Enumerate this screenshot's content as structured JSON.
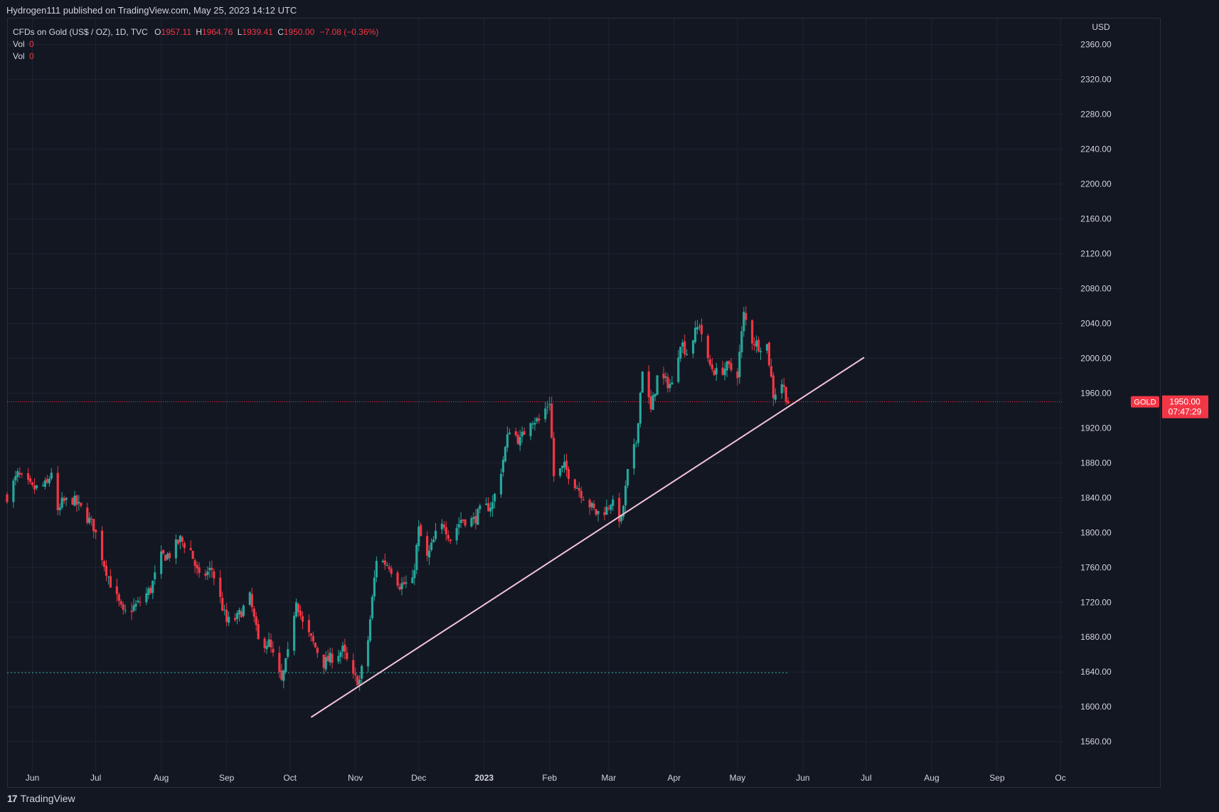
{
  "header": {
    "publish_line": "Hydrogen111 published on TradingView.com, May 25, 2023 14:12 UTC"
  },
  "legend": {
    "symbol": "CFDs on Gold (US$ / OZ), 1D, TVC",
    "o_label": "O",
    "o_value": "1957.11",
    "h_label": "H",
    "h_value": "1964.76",
    "l_label": "L",
    "l_value": "1939.41",
    "c_label": "C",
    "c_value": "1950.00",
    "change": "−7.08 (−0.36%)",
    "vol_rows": [
      {
        "label": "Vol",
        "value": "0"
      },
      {
        "label": "Vol",
        "value": "0"
      }
    ]
  },
  "footer": {
    "brand": "TradingView",
    "logo_glyph": "17"
  },
  "colors": {
    "up": "#26a69a",
    "down": "#f23645",
    "background": "#131722",
    "grid": "#1f2431",
    "trendline": "#f4c4d8",
    "price_line": "#f23645"
  },
  "chart_data": {
    "type": "candlestick",
    "currency_label": "USD",
    "ylim": [
      1525,
      2390
    ],
    "y_ticks": [
      "2360.00",
      "2320.00",
      "2280.00",
      "2240.00",
      "2200.00",
      "2160.00",
      "2120.00",
      "2080.00",
      "2040.00",
      "2000.00",
      "1960.00",
      "1920.00",
      "1880.00",
      "1840.00",
      "1800.00",
      "1760.00",
      "1720.00",
      "1680.00",
      "1640.00",
      "1600.00",
      "1560.00"
    ],
    "x_ticks": [
      {
        "label": "Jun",
        "date": "2022-06-01",
        "bold": false
      },
      {
        "label": "Jul",
        "date": "2022-07-01",
        "bold": false
      },
      {
        "label": "Aug",
        "date": "2022-08-01",
        "bold": false
      },
      {
        "label": "Sep",
        "date": "2022-09-01",
        "bold": false
      },
      {
        "label": "Oct",
        "date": "2022-10-01",
        "bold": false
      },
      {
        "label": "Nov",
        "date": "2022-11-01",
        "bold": false
      },
      {
        "label": "Dec",
        "date": "2022-12-01",
        "bold": false
      },
      {
        "label": "2023",
        "date": "2023-01-01",
        "bold": true
      },
      {
        "label": "Feb",
        "date": "2023-02-01",
        "bold": false
      },
      {
        "label": "Mar",
        "date": "2023-03-01",
        "bold": false
      },
      {
        "label": "Apr",
        "date": "2023-04-01",
        "bold": false
      },
      {
        "label": "May",
        "date": "2023-05-01",
        "bold": false
      },
      {
        "label": "Jun",
        "date": "2023-06-01",
        "bold": false
      },
      {
        "label": "Jul",
        "date": "2023-07-01",
        "bold": false
      },
      {
        "label": "Aug",
        "date": "2023-08-01",
        "bold": false
      },
      {
        "label": "Sep",
        "date": "2023-09-01",
        "bold": false
      },
      {
        "label": "Oc",
        "date": "2023-10-01",
        "bold": false
      }
    ],
    "x_start": "2022-05-20",
    "x_end": "2023-10-02",
    "current_price": {
      "symbol": "GOLD",
      "price": "1950.00",
      "countdown": "07:47:29",
      "value": 1950
    },
    "horizontal_line": {
      "value": 1639,
      "from": "2022-05-20",
      "to": "2023-05-25"
    },
    "trendline": {
      "from_date": "2022-10-11",
      "from_value": 1588,
      "to_date": "2023-06-30",
      "to_value": 2001
    },
    "close_path": [
      [
        "2022-05-20",
        1842
      ],
      [
        "2022-05-25",
        1866
      ],
      [
        "2022-06-01",
        1850
      ],
      [
        "2022-06-03",
        1851
      ],
      [
        "2022-06-08",
        1855
      ],
      [
        "2022-06-10",
        1871
      ],
      [
        "2022-06-13",
        1820
      ],
      [
        "2022-06-15",
        1834
      ],
      [
        "2022-06-20",
        1838
      ],
      [
        "2022-06-24",
        1827
      ],
      [
        "2022-06-30",
        1807
      ],
      [
        "2022-07-05",
        1764
      ],
      [
        "2022-07-08",
        1742
      ],
      [
        "2022-07-14",
        1706
      ],
      [
        "2022-07-21",
        1718
      ],
      [
        "2022-07-27",
        1735
      ],
      [
        "2022-08-01",
        1772
      ],
      [
        "2022-08-05",
        1775
      ],
      [
        "2022-08-10",
        1792
      ],
      [
        "2022-08-15",
        1779
      ],
      [
        "2022-08-19",
        1747
      ],
      [
        "2022-08-25",
        1758
      ],
      [
        "2022-09-01",
        1697
      ],
      [
        "2022-09-06",
        1702
      ],
      [
        "2022-09-12",
        1725
      ],
      [
        "2022-09-16",
        1675
      ],
      [
        "2022-09-21",
        1673
      ],
      [
        "2022-09-27",
        1628
      ],
      [
        "2022-09-30",
        1660
      ],
      [
        "2022-10-04",
        1725
      ],
      [
        "2022-10-07",
        1695
      ],
      [
        "2022-10-12",
        1673
      ],
      [
        "2022-10-17",
        1650
      ],
      [
        "2022-10-21",
        1657
      ],
      [
        "2022-10-26",
        1665
      ],
      [
        "2022-10-31",
        1633
      ],
      [
        "2022-11-03",
        1630
      ],
      [
        "2022-11-07",
        1677
      ],
      [
        "2022-11-11",
        1770
      ],
      [
        "2022-11-17",
        1763
      ],
      [
        "2022-11-22",
        1740
      ],
      [
        "2022-11-28",
        1742
      ],
      [
        "2022-12-01",
        1803
      ],
      [
        "2022-12-05",
        1770
      ],
      [
        "2022-12-09",
        1797
      ],
      [
        "2022-12-13",
        1810
      ],
      [
        "2022-12-16",
        1793
      ],
      [
        "2022-12-21",
        1815
      ],
      [
        "2022-12-27",
        1814
      ],
      [
        "2022-12-30",
        1824
      ],
      [
        "2023-01-05",
        1833
      ],
      [
        "2023-01-09",
        1872
      ],
      [
        "2023-01-13",
        1920
      ],
      [
        "2023-01-18",
        1905
      ],
      [
        "2023-01-23",
        1931
      ],
      [
        "2023-01-27",
        1928
      ],
      [
        "2023-02-01",
        1951
      ],
      [
        "2023-02-03",
        1865
      ],
      [
        "2023-02-08",
        1875
      ],
      [
        "2023-02-14",
        1853
      ],
      [
        "2023-02-17",
        1842
      ],
      [
        "2023-02-23",
        1822
      ],
      [
        "2023-02-28",
        1827
      ],
      [
        "2023-03-02",
        1836
      ],
      [
        "2023-03-07",
        1813
      ],
      [
        "2023-03-10",
        1868
      ],
      [
        "2023-03-14",
        1904
      ],
      [
        "2023-03-17",
        1989
      ],
      [
        "2023-03-21",
        1939
      ],
      [
        "2023-03-24",
        1978
      ],
      [
        "2023-03-28",
        1973
      ],
      [
        "2023-03-31",
        1969
      ],
      [
        "2023-04-04",
        2020
      ],
      [
        "2023-04-07",
        2007
      ],
      [
        "2023-04-13",
        2040
      ],
      [
        "2023-04-17",
        1995
      ],
      [
        "2023-04-21",
        1983
      ],
      [
        "2023-04-26",
        1990
      ],
      [
        "2023-05-01",
        1983
      ],
      [
        "2023-05-04",
        2050
      ],
      [
        "2023-05-08",
        2021
      ],
      [
        "2023-05-11",
        2015
      ],
      [
        "2023-05-15",
        2015
      ],
      [
        "2023-05-18",
        1958
      ],
      [
        "2023-05-22",
        1972
      ],
      [
        "2023-05-25",
        1950
      ]
    ]
  }
}
